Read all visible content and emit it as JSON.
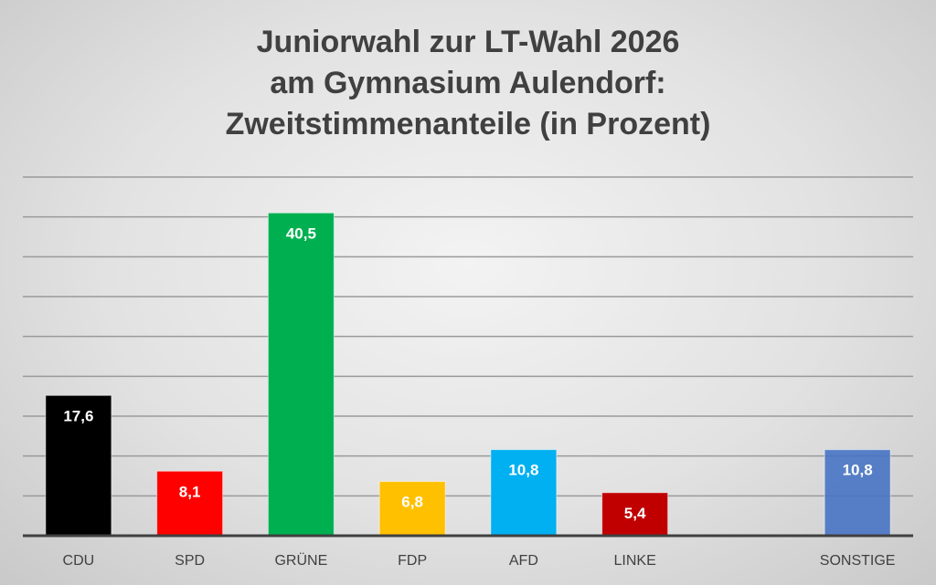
{
  "chart_data": {
    "type": "bar",
    "title_lines": [
      "Juniorwahl zur LT-Wahl 2026",
      "am Gymnasium Aulendorf:",
      "Zweitstimmenanteile (in Prozent)"
    ],
    "categories": [
      "CDU",
      "SPD",
      "GRÜNE",
      "FDP",
      "AFD",
      "LINKE",
      "",
      "SONSTIGE"
    ],
    "values": [
      17.6,
      8.1,
      40.5,
      6.8,
      10.8,
      5.4,
      null,
      10.8
    ],
    "data_labels": [
      "17,6",
      "8,1",
      "40,5",
      "6,8",
      "10,8",
      "5,4",
      "",
      "10,8"
    ],
    "colors": [
      "#000000",
      "#ff0000",
      "#00b050",
      "#ffc000",
      "#00b0f0",
      "#c00000",
      "#ffffff",
      "#4472c4"
    ],
    "xlabel": "",
    "ylabel": "",
    "ylim": [
      0,
      45
    ],
    "grid_step": 5,
    "grid": true,
    "legend": "none"
  }
}
